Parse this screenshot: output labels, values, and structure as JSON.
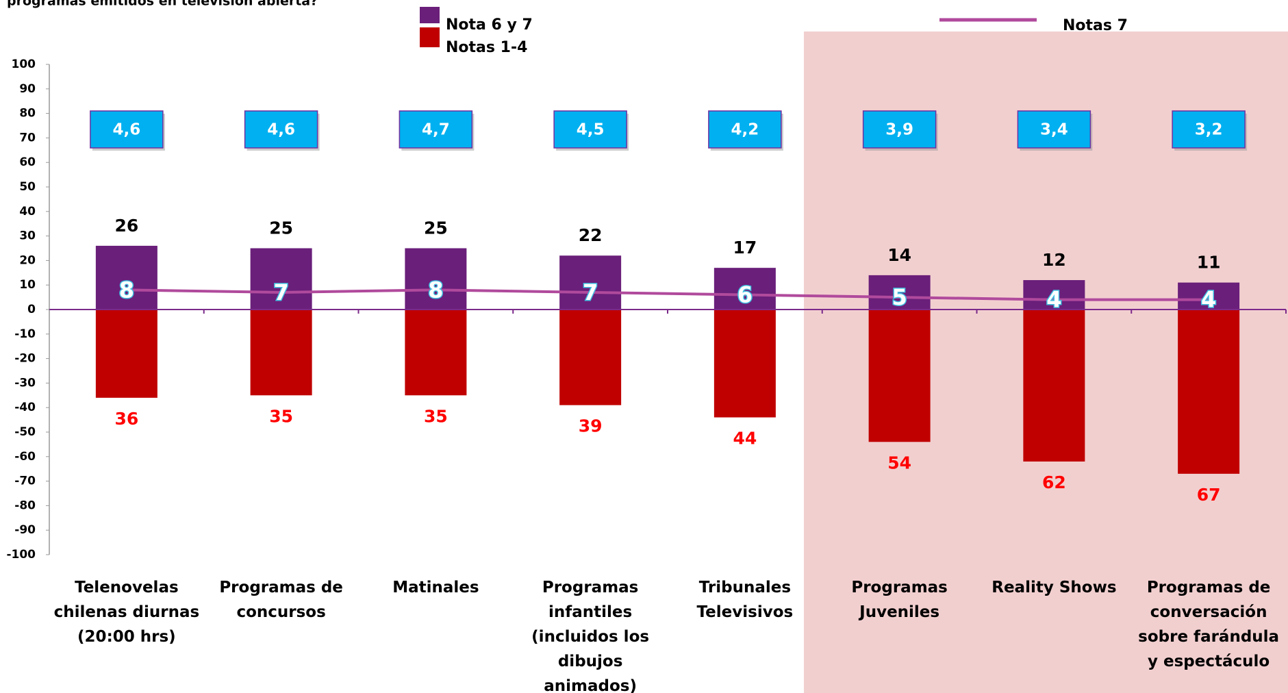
{
  "chart_data": {
    "type": "diverging_bar_line",
    "title": "programas emitidos en televisión abierta?",
    "categories": [
      "Telenovelas chilenas diurnas (20:00 hrs)",
      "Programas de concursos",
      "Matinales",
      "Programas infantiles (incluidos los dibujos animados)",
      "Tribunales Televisivos",
      "Programas Juveniles",
      "Reality Shows",
      "Programas de conversación sobre farándula y espectáculo"
    ],
    "series": [
      {
        "name": "Nota 6 y 7",
        "color": "#6a1f7a",
        "kind": "bar",
        "values": [
          26,
          25,
          25,
          22,
          17,
          14,
          12,
          11
        ]
      },
      {
        "name": "Notas 1-4",
        "color": "#c00000",
        "kind": "bar",
        "values": [
          -36,
          -35,
          -35,
          -39,
          -44,
          -54,
          -62,
          -67
        ],
        "value_labels": [
          "36",
          "35",
          "35",
          "39",
          "44",
          "54",
          "62",
          "67"
        ]
      },
      {
        "name": "Notas 7",
        "color": "#b04a9c",
        "kind": "line",
        "values": [
          8,
          7,
          8,
          7,
          6,
          5,
          4,
          4
        ]
      }
    ],
    "averages": {
      "values": [
        4.6,
        4.6,
        4.7,
        4.5,
        4.2,
        3.9,
        3.4,
        3.2
      ],
      "value_labels": [
        "4,6",
        "4,6",
        "4,7",
        "4,5",
        "4,2",
        "3,9",
        "3,4",
        "3,2"
      ]
    },
    "ylim": [
      -100,
      100
    ],
    "yticks": [
      -100,
      -90,
      -80,
      -70,
      -60,
      -50,
      -40,
      -30,
      -20,
      -10,
      0,
      10,
      20,
      30,
      40,
      50,
      60,
      70,
      80,
      90,
      100
    ]
  }
}
